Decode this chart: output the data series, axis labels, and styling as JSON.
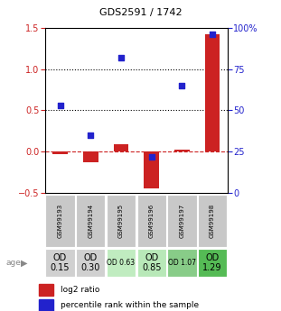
{
  "title": "GDS2591 / 1742",
  "samples": [
    "GSM99193",
    "GSM99194",
    "GSM99195",
    "GSM99196",
    "GSM99197",
    "GSM99198"
  ],
  "log2_ratio": [
    -0.03,
    -0.13,
    0.09,
    -0.45,
    0.02,
    1.42
  ],
  "percentile_rank": [
    53,
    35,
    82,
    22,
    65,
    96
  ],
  "ylim_left": [
    -0.5,
    1.5
  ],
  "ylim_right": [
    0,
    100
  ],
  "yticks_left": [
    -0.5,
    0.0,
    0.5,
    1.0,
    1.5
  ],
  "yticks_right": [
    0,
    25,
    50,
    75,
    100
  ],
  "hlines_dotted": [
    0.5,
    1.0
  ],
  "hline_dashed_red": 0.0,
  "bar_color": "#cc2222",
  "dot_color": "#2222cc",
  "bar_width": 0.5,
  "dot_size": 25,
  "age_labels": [
    "OD\n0.15",
    "OD\n0.30",
    "OD 0.63",
    "OD\n0.85",
    "OD 1.07",
    "OD\n1.29"
  ],
  "age_bg_colors": [
    "#d0d0d0",
    "#d0d0d0",
    "#c0ecc0",
    "#b8e8b8",
    "#88cc88",
    "#55bb55"
  ],
  "sample_bg_color": "#c8c8c8",
  "legend_red": "log2 ratio",
  "legend_blue": "percentile rank within the sample",
  "title_fontsize": 8,
  "tick_fontsize": 7,
  "sample_fontsize": 5,
  "age_fontsize_large": 7,
  "age_fontsize_small": 5.5,
  "legend_fontsize": 6.5
}
